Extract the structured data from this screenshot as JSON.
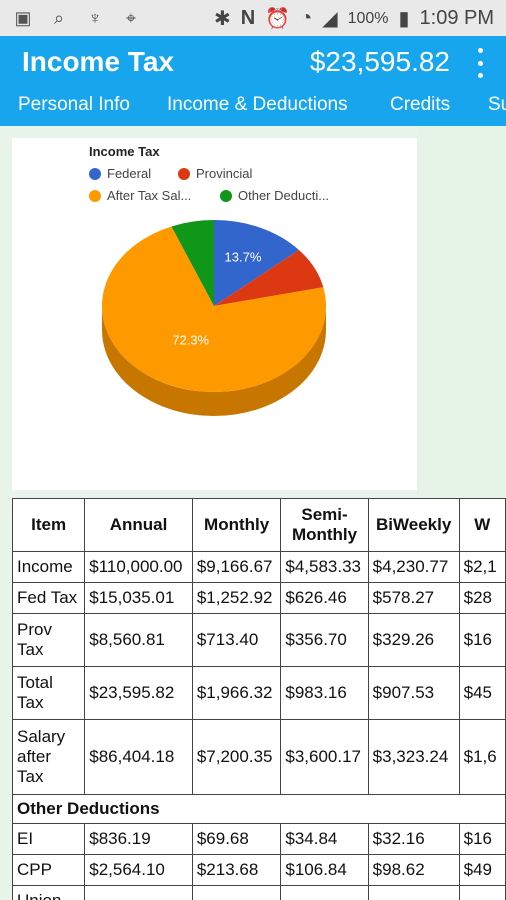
{
  "status_bar": {
    "time": "1:09 PM",
    "battery": "100%",
    "icons": [
      "message-icon",
      "search-icon",
      "usb-icon",
      "location-icon",
      "bluetooth-icon",
      "nfc-icon",
      "alarm-icon",
      "wifi-icon",
      "signal-icon",
      "battery-icon"
    ]
  },
  "app_bar": {
    "title": "Income Tax",
    "amount": "$23,595.82",
    "menu_icon": "more-vert-icon",
    "tabs": [
      "Personal Info",
      "Income & Deductions",
      "Credits",
      "Su"
    ]
  },
  "chart_data": {
    "type": "pie",
    "title": "Income Tax",
    "legend": [
      {
        "name": "Federal",
        "color": "#3366cc"
      },
      {
        "name": "Provincial",
        "color": "#dc3912"
      },
      {
        "name": "After Tax Sal...",
        "color": "#ff9900"
      },
      {
        "name": "Other Deducti...",
        "color": "#109618"
      }
    ],
    "slices": [
      {
        "name": "Federal",
        "value": 13.7,
        "label": "13.7%",
        "color": "#3366cc"
      },
      {
        "name": "Provincial",
        "value": 7.8,
        "label": "",
        "color": "#dc3912"
      },
      {
        "name": "After Tax Salary",
        "value": 72.3,
        "label": "72.3%",
        "color": "#ff9900"
      },
      {
        "name": "Other Deductions",
        "value": 6.2,
        "label": "",
        "color": "#109618"
      }
    ],
    "style": "3d"
  },
  "table": {
    "headers": [
      "Item",
      "Annual",
      "Monthly",
      "Semi-Monthly",
      "BiWeekly",
      "W"
    ],
    "rows": [
      [
        "Income",
        "$110,000.00",
        "$9,166.67",
        "$4,583.33",
        "$4,230.77",
        "$2,1"
      ],
      [
        "Fed Tax",
        "$15,035.01",
        "$1,252.92",
        "$626.46",
        "$578.27",
        "$28"
      ],
      [
        "Prov Tax",
        "$8,560.81",
        "$713.40",
        "$356.70",
        "$329.26",
        "$16"
      ],
      [
        "Total Tax",
        "$23,595.82",
        "$1,966.32",
        "$983.16",
        "$907.53",
        "$45"
      ],
      [
        "Salary after Tax",
        "$86,404.18",
        "$7,200.35",
        "$3,600.17",
        "$3,323.24",
        "$1,6"
      ]
    ],
    "section_title": "Other Deductions",
    "section_rows": [
      [
        "EI",
        "$836.19",
        "$69.68",
        "$34.84",
        "$32.16",
        "$16"
      ],
      [
        "CPP",
        "$2,564.10",
        "$213.68",
        "$106.84",
        "$98.62",
        "$49"
      ],
      [
        "Union",
        "",
        "",
        "",
        "",
        ""
      ]
    ]
  }
}
